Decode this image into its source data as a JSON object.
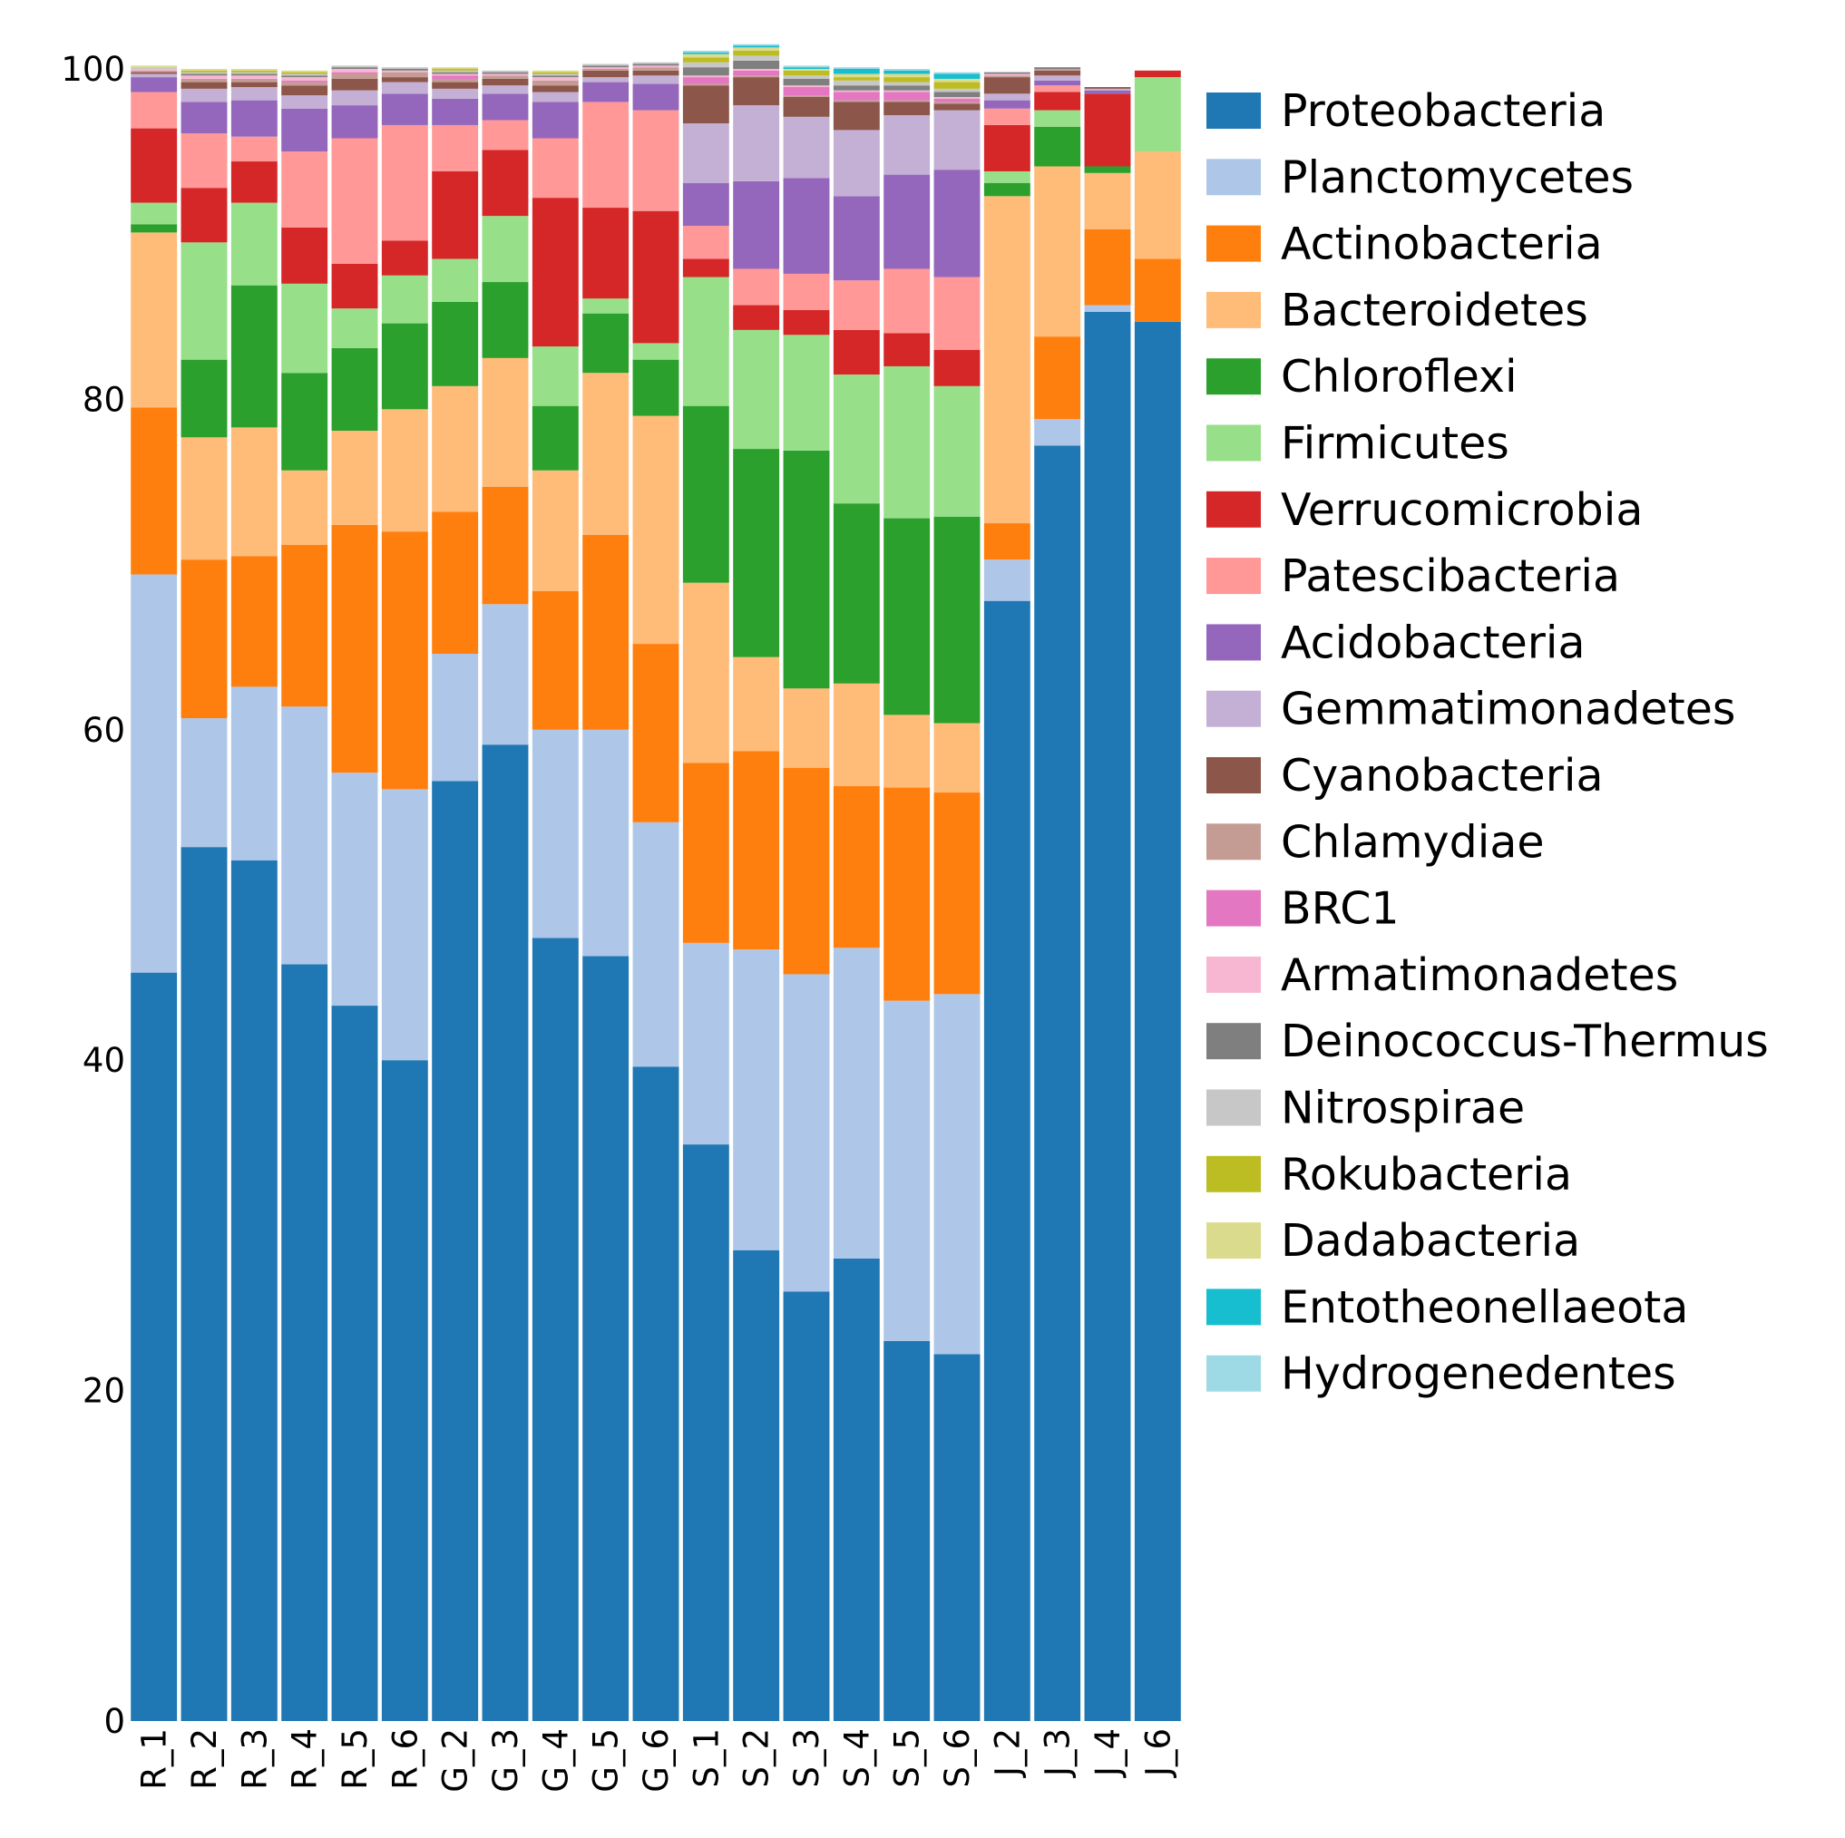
{
  "chart_data": {
    "type": "bar",
    "stacked": true,
    "title": "",
    "xlabel": "",
    "ylabel": "",
    "ylim": [
      0,
      100
    ],
    "yticks": [
      0,
      20,
      40,
      60,
      80,
      100
    ],
    "grid": false,
    "legend_position": "right",
    "categories": [
      "R_1",
      "R_2",
      "R_3",
      "R_4",
      "R_5",
      "R_6",
      "G_2",
      "G_3",
      "G_4",
      "G_5",
      "G_6",
      "S_1",
      "S_2",
      "S_3",
      "S_4",
      "S_5",
      "S_6",
      "J_2",
      "J_3",
      "J_4",
      "J_6"
    ],
    "series": [
      {
        "name": "Proteobacteria",
        "color": "#1f77b4",
        "values": [
          45.3,
          52.9,
          52.1,
          45.8,
          43.3,
          40.0,
          56.9,
          59.1,
          47.4,
          46.3,
          39.6,
          34.9,
          28.5,
          26.0,
          28.0,
          23.0,
          22.2,
          67.8,
          77.2,
          85.3,
          84.7
        ]
      },
      {
        "name": "Planctomycetes",
        "color": "#aec7e8",
        "values": [
          24.1,
          7.8,
          10.5,
          15.6,
          14.1,
          16.4,
          7.7,
          8.5,
          12.6,
          13.7,
          14.8,
          12.2,
          18.2,
          19.2,
          18.8,
          20.6,
          21.8,
          2.5,
          1.6,
          0.4,
          0.0
        ]
      },
      {
        "name": "Actinobacteria",
        "color": "#ff7f0e",
        "values": [
          10.1,
          9.6,
          7.9,
          9.8,
          15.0,
          15.6,
          8.6,
          7.1,
          8.4,
          11.8,
          10.8,
          10.9,
          12.0,
          12.5,
          9.8,
          12.9,
          12.2,
          2.2,
          5.0,
          4.6,
          3.8
        ]
      },
      {
        "name": "Bacteroidetes",
        "color": "#ffbb78",
        "values": [
          10.6,
          7.4,
          7.8,
          4.5,
          5.7,
          7.4,
          7.6,
          7.8,
          7.3,
          9.8,
          13.8,
          10.9,
          5.7,
          4.8,
          6.2,
          4.4,
          4.2,
          19.8,
          10.3,
          3.4,
          6.5
        ]
      },
      {
        "name": "Chloroflexi",
        "color": "#2ca02c",
        "values": [
          0.5,
          4.7,
          8.6,
          5.9,
          5.0,
          5.2,
          5.1,
          4.6,
          3.9,
          3.6,
          3.4,
          10.7,
          12.6,
          14.4,
          10.9,
          11.9,
          12.5,
          0.8,
          2.4,
          0.4,
          0.0
        ]
      },
      {
        "name": "Firmicutes",
        "color": "#98df8a",
        "values": [
          1.3,
          7.1,
          5.0,
          5.4,
          2.4,
          2.9,
          2.6,
          4.0,
          3.6,
          0.9,
          1.0,
          7.8,
          7.2,
          7.0,
          7.8,
          9.2,
          7.9,
          0.7,
          1.0,
          0.0,
          4.5
        ]
      },
      {
        "name": "Verrucomicrobia",
        "color": "#d62728",
        "values": [
          4.5,
          3.3,
          2.5,
          3.4,
          2.7,
          2.1,
          5.3,
          4.0,
          9.0,
          5.5,
          8.0,
          1.1,
          1.5,
          1.5,
          2.7,
          2.0,
          2.2,
          2.8,
          1.1,
          4.4,
          0.4
        ]
      },
      {
        "name": "Patescibacteria",
        "color": "#ff9896",
        "values": [
          2.2,
          3.3,
          1.5,
          4.6,
          7.6,
          7.0,
          2.8,
          1.8,
          3.6,
          6.4,
          6.1,
          2.0,
          2.2,
          2.2,
          3.0,
          3.9,
          4.4,
          1.0,
          0.4,
          0.0,
          0.0
        ]
      },
      {
        "name": "Acidobacteria",
        "color": "#9467bd",
        "values": [
          0.9,
          1.9,
          2.2,
          2.6,
          2.0,
          1.9,
          1.6,
          1.6,
          2.2,
          1.2,
          1.6,
          2.6,
          5.3,
          5.8,
          5.1,
          5.7,
          6.5,
          0.5,
          0.3,
          0.2,
          0.0
        ]
      },
      {
        "name": "Gemmatimonadetes",
        "color": "#c5b0d5",
        "values": [
          0.2,
          0.8,
          0.8,
          0.8,
          0.9,
          0.7,
          0.6,
          0.5,
          0.6,
          0.3,
          0.5,
          3.6,
          4.6,
          3.7,
          4.0,
          3.6,
          3.6,
          0.4,
          0.3,
          0.1,
          0.0
        ]
      },
      {
        "name": "Cyanobacteria",
        "color": "#8c564b",
        "values": [
          0.1,
          0.4,
          0.3,
          0.6,
          0.7,
          0.3,
          0.4,
          0.4,
          0.4,
          0.4,
          0.3,
          2.3,
          1.7,
          1.2,
          1.7,
          0.8,
          0.4,
          1.0,
          0.3,
          0.1,
          0.0
        ]
      },
      {
        "name": "Chlamydiae",
        "color": "#c49c94",
        "values": [
          0.1,
          0.2,
          0.2,
          0.2,
          0.3,
          0.3,
          0.2,
          0.2,
          0.3,
          0.1,
          0.2,
          0.1,
          0.1,
          0.1,
          0.1,
          0.1,
          0.1,
          0.1,
          0.1,
          0.0,
          0.0
        ]
      },
      {
        "name": "BRC1",
        "color": "#e377c2",
        "values": [
          0.0,
          0.0,
          0.0,
          0.1,
          0.1,
          0.0,
          0.2,
          0.0,
          0.0,
          0.0,
          0.0,
          0.4,
          0.3,
          0.5,
          0.5,
          0.5,
          0.2,
          0.0,
          0.0,
          0.0,
          0.0
        ]
      },
      {
        "name": "Armatimonadetes",
        "color": "#f7b6d2",
        "values": [
          0.1,
          0.2,
          0.2,
          0.2,
          0.2,
          0.1,
          0.1,
          0.1,
          0.2,
          0.1,
          0.1,
          0.1,
          0.1,
          0.1,
          0.1,
          0.1,
          0.1,
          0.1,
          0.0,
          0.0,
          0.0
        ]
      },
      {
        "name": "Deinococcus-Thermus",
        "color": "#7f7f7f",
        "values": [
          0.0,
          0.1,
          0.1,
          0.1,
          0.1,
          0.1,
          0.1,
          0.1,
          0.1,
          0.1,
          0.1,
          0.5,
          0.5,
          0.4,
          0.3,
          0.3,
          0.3,
          0.1,
          0.1,
          0.0,
          0.0
        ]
      },
      {
        "name": "Nitrospirae",
        "color": "#c7c7c7",
        "values": [
          0.1,
          0.1,
          0.1,
          0.1,
          0.1,
          0.1,
          0.1,
          0.1,
          0.1,
          0.1,
          0.1,
          0.3,
          0.3,
          0.2,
          0.3,
          0.2,
          0.2,
          0.0,
          0.0,
          0.0,
          0.0
        ]
      },
      {
        "name": "Rokubacteria",
        "color": "#bcbd22",
        "values": [
          0.0,
          0.1,
          0.1,
          0.1,
          0.0,
          0.0,
          0.1,
          0.0,
          0.1,
          0.0,
          0.0,
          0.3,
          0.3,
          0.3,
          0.2,
          0.3,
          0.4,
          0.0,
          0.0,
          0.0,
          0.0
        ]
      },
      {
        "name": "Dadabacteria",
        "color": "#dbdb8d",
        "values": [
          0.1,
          0.1,
          0.1,
          0.1,
          0.0,
          0.0,
          0.1,
          0.0,
          0.1,
          0.0,
          0.0,
          0.2,
          0.2,
          0.1,
          0.2,
          0.2,
          0.2,
          0.0,
          0.0,
          0.0,
          0.0
        ]
      },
      {
        "name": "Entotheonellaeota",
        "color": "#17becf",
        "values": [
          0.0,
          0.0,
          0.0,
          0.0,
          0.0,
          0.0,
          0.0,
          0.0,
          0.0,
          0.0,
          0.0,
          0.1,
          0.1,
          0.1,
          0.3,
          0.2,
          0.3,
          0.0,
          0.0,
          0.0,
          0.0
        ]
      },
      {
        "name": "Hydrogenedentes",
        "color": "#9edae5",
        "values": [
          0.0,
          0.0,
          0.0,
          0.0,
          0.0,
          0.0,
          0.0,
          0.0,
          0.0,
          0.0,
          0.0,
          0.1,
          0.1,
          0.1,
          0.1,
          0.1,
          0.1,
          0.0,
          0.0,
          0.0,
          0.0
        ]
      }
    ]
  }
}
